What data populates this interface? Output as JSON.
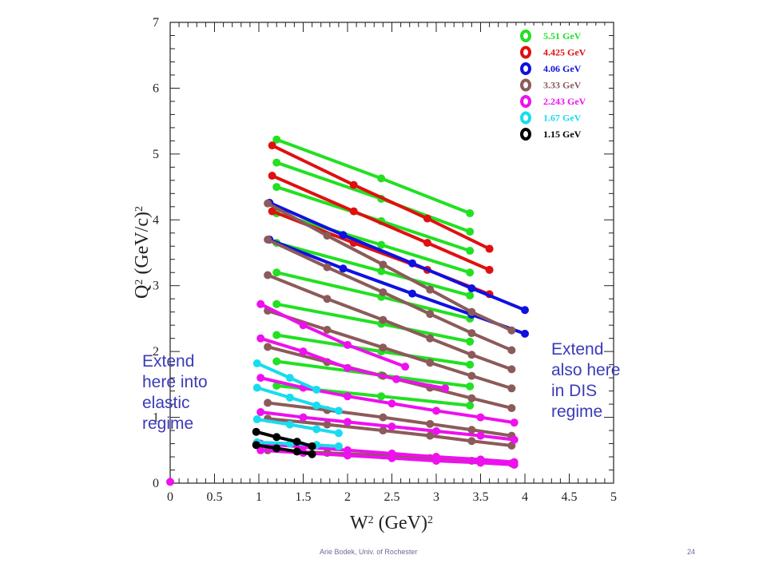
{
  "chart_data": {
    "type": "scatter",
    "xlabel": "W² (GeV)²",
    "ylabel": "Q² (GeV/c)²",
    "xlim": [
      0,
      5
    ],
    "ylim": [
      0,
      7
    ],
    "x_ticks": [
      "0",
      "0.5",
      "1",
      "1.5",
      "2",
      "2.5",
      "3",
      "3.5",
      "4",
      "4.5",
      "5"
    ],
    "y_ticks": [
      "0",
      "1",
      "2",
      "3",
      "4",
      "5",
      "6",
      "7"
    ],
    "legend_position": "top-right",
    "grid": false,
    "series": [
      {
        "name": "5.51 GeV",
        "color": "#22e022",
        "lines": [
          [
            [
              1.2,
              5.22
            ],
            [
              2.38,
              4.63
            ],
            [
              3.38,
              4.1
            ]
          ],
          [
            [
              1.2,
              4.87
            ],
            [
              2.38,
              4.32
            ],
            [
              3.38,
              3.82
            ]
          ],
          [
            [
              1.2,
              4.5
            ],
            [
              2.38,
              3.98
            ],
            [
              3.38,
              3.53
            ]
          ],
          [
            [
              1.2,
              4.1
            ],
            [
              2.38,
              3.62
            ],
            [
              3.38,
              3.2
            ]
          ],
          [
            [
              1.2,
              3.65
            ],
            [
              2.38,
              3.22
            ],
            [
              3.38,
              2.85
            ]
          ],
          [
            [
              1.2,
              3.2
            ],
            [
              2.38,
              2.83
            ],
            [
              3.38,
              2.5
            ]
          ],
          [
            [
              1.2,
              2.72
            ],
            [
              2.38,
              2.42
            ],
            [
              3.38,
              2.15
            ]
          ],
          [
            [
              1.2,
              2.25
            ],
            [
              2.38,
              2.0
            ],
            [
              3.38,
              1.8
            ]
          ],
          [
            [
              1.2,
              1.85
            ],
            [
              2.38,
              1.64
            ],
            [
              3.38,
              1.47
            ]
          ],
          [
            [
              1.2,
              1.48
            ],
            [
              2.38,
              1.32
            ],
            [
              3.38,
              1.18
            ]
          ]
        ]
      },
      {
        "name": "4.425 GeV",
        "color": "#e01010",
        "lines": [
          [
            [
              1.15,
              5.13
            ],
            [
              2.07,
              4.53
            ],
            [
              2.9,
              4.02
            ],
            [
              3.6,
              3.56
            ]
          ],
          [
            [
              1.15,
              4.67
            ],
            [
              2.07,
              4.13
            ],
            [
              2.9,
              3.65
            ],
            [
              3.6,
              3.24
            ]
          ],
          [
            [
              1.15,
              4.13
            ],
            [
              2.07,
              3.65
            ],
            [
              2.9,
              3.24
            ],
            [
              3.6,
              2.87
            ]
          ]
        ]
      },
      {
        "name": "4.06 GeV",
        "color": "#1010e0",
        "lines": [
          [
            [
              1.12,
              4.26
            ],
            [
              1.95,
              3.77
            ],
            [
              2.73,
              3.34
            ],
            [
              3.4,
              2.96
            ],
            [
              4.0,
              2.63
            ]
          ],
          [
            [
              1.12,
              3.7
            ],
            [
              1.95,
              3.26
            ],
            [
              2.73,
              2.88
            ],
            [
              3.4,
              2.56
            ],
            [
              4.0,
              2.27
            ]
          ]
        ]
      },
      {
        "name": "3.33 GeV",
        "color": "#8c5a5a",
        "lines": [
          [
            [
              1.1,
              4.25
            ],
            [
              1.77,
              3.76
            ],
            [
              2.4,
              3.32
            ],
            [
              2.93,
              2.94
            ],
            [
              3.4,
              2.6
            ],
            [
              3.85,
              2.32
            ]
          ],
          [
            [
              1.1,
              3.7
            ],
            [
              1.77,
              3.28
            ],
            [
              2.4,
              2.9
            ],
            [
              2.93,
              2.57
            ],
            [
              3.4,
              2.28
            ],
            [
              3.85,
              2.02
            ]
          ],
          [
            [
              1.1,
              3.16
            ],
            [
              1.77,
              2.8
            ],
            [
              2.4,
              2.48
            ],
            [
              2.93,
              2.2
            ],
            [
              3.4,
              1.95
            ],
            [
              3.85,
              1.73
            ]
          ],
          [
            [
              1.1,
              2.62
            ],
            [
              1.77,
              2.33
            ],
            [
              2.4,
              2.06
            ],
            [
              2.93,
              1.83
            ],
            [
              3.4,
              1.63
            ],
            [
              3.85,
              1.44
            ]
          ],
          [
            [
              1.1,
              2.07
            ],
            [
              1.77,
              1.84
            ],
            [
              2.4,
              1.63
            ],
            [
              2.93,
              1.45
            ],
            [
              3.4,
              1.29
            ],
            [
              3.85,
              1.14
            ]
          ],
          [
            [
              1.1,
              1.22
            ],
            [
              1.77,
              1.11
            ],
            [
              2.4,
              1.0
            ],
            [
              2.93,
              0.9
            ],
            [
              3.4,
              0.81
            ],
            [
              3.85,
              0.72
            ]
          ],
          [
            [
              1.1,
              0.98
            ],
            [
              1.77,
              0.89
            ],
            [
              2.4,
              0.8
            ],
            [
              2.93,
              0.72
            ],
            [
              3.4,
              0.64
            ],
            [
              3.85,
              0.57
            ]
          ],
          [
            [
              1.1,
              0.5
            ],
            [
              1.77,
              0.46
            ],
            [
              2.4,
              0.42
            ],
            [
              2.93,
              0.38
            ],
            [
              3.4,
              0.34
            ],
            [
              3.85,
              0.3
            ]
          ]
        ]
      },
      {
        "name": "2.243 GeV",
        "color": "#ee10ee",
        "lines": [
          [
            [
              1.02,
              2.72
            ],
            [
              1.5,
              2.4
            ],
            [
              2.0,
              2.1
            ],
            [
              2.65,
              1.77
            ]
          ],
          [
            [
              1.02,
              2.2
            ],
            [
              1.5,
              2.0
            ],
            [
              2.0,
              1.75
            ],
            [
              2.55,
              1.58
            ],
            [
              3.1,
              1.44
            ]
          ],
          [
            [
              1.02,
              1.6
            ],
            [
              1.5,
              1.45
            ],
            [
              2.0,
              1.32
            ],
            [
              2.5,
              1.21
            ],
            [
              3.0,
              1.1
            ],
            [
              3.5,
              1.0
            ],
            [
              3.88,
              0.92
            ]
          ],
          [
            [
              1.02,
              1.08
            ],
            [
              1.5,
              1.0
            ],
            [
              2.0,
              0.93
            ],
            [
              2.5,
              0.86
            ],
            [
              3.0,
              0.79
            ],
            [
              3.5,
              0.72
            ],
            [
              3.88,
              0.66
            ]
          ],
          [
            [
              1.02,
              0.6
            ],
            [
              1.5,
              0.55
            ],
            [
              2.0,
              0.5
            ],
            [
              2.5,
              0.45
            ],
            [
              3.0,
              0.4
            ],
            [
              3.5,
              0.36
            ],
            [
              3.88,
              0.32
            ]
          ],
          [
            [
              1.02,
              0.5
            ],
            [
              1.5,
              0.46
            ],
            [
              2.0,
              0.42
            ],
            [
              2.5,
              0.38
            ],
            [
              3.0,
              0.34
            ],
            [
              3.5,
              0.31
            ],
            [
              3.88,
              0.28
            ]
          ],
          [
            [
              0.0,
              0.02
            ]
          ]
        ]
      },
      {
        "name": "1.67 GeV",
        "color": "#18dcee",
        "lines": [
          [
            [
              0.98,
              1.82
            ],
            [
              1.35,
              1.6
            ],
            [
              1.65,
              1.42
            ]
          ],
          [
            [
              0.98,
              1.45
            ],
            [
              1.35,
              1.3
            ],
            [
              1.65,
              1.18
            ],
            [
              1.9,
              1.1
            ]
          ],
          [
            [
              0.98,
              0.97
            ],
            [
              1.35,
              0.89
            ],
            [
              1.65,
              0.82
            ],
            [
              1.9,
              0.76
            ]
          ],
          [
            [
              0.98,
              0.62
            ],
            [
              1.35,
              0.6
            ],
            [
              1.65,
              0.58
            ],
            [
              1.9,
              0.56
            ]
          ]
        ]
      },
      {
        "name": "1.15 GeV",
        "color": "#000000",
        "lines": [
          [
            [
              0.97,
              0.78
            ],
            [
              1.2,
              0.7
            ],
            [
              1.43,
              0.63
            ],
            [
              1.6,
              0.56
            ]
          ],
          [
            [
              0.97,
              0.58
            ],
            [
              1.2,
              0.53
            ],
            [
              1.43,
              0.48
            ],
            [
              1.6,
              0.44
            ]
          ]
        ]
      }
    ]
  },
  "annotations": {
    "left": "Extend\nhere into\nelastic\nregime",
    "right": "Extend\nalso here\nin DIS\nregime"
  },
  "footer": {
    "author": "Arie Bodek,  Univ. of Rochester",
    "page": "24"
  }
}
